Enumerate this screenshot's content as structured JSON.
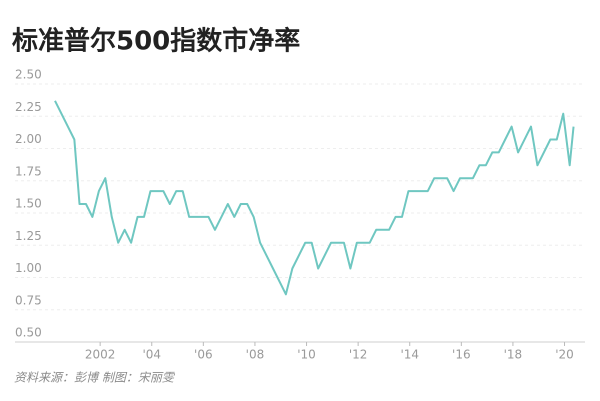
{
  "chart_data": {
    "type": "line",
    "title": "标准普尔500指数市净率",
    "source": "资料来源：彭博   制图：宋丽雯",
    "x": [
      2000.25,
      2001.0,
      2001.2,
      2001.45,
      2001.7,
      2001.95,
      2002.2,
      2002.45,
      2002.7,
      2002.95,
      2003.2,
      2003.45,
      2003.7,
      2003.95,
      2004.45,
      2004.7,
      2004.95,
      2005.2,
      2005.45,
      2006.2,
      2006.45,
      2006.7,
      2006.95,
      2007.2,
      2007.45,
      2007.7,
      2007.95,
      2008.2,
      2008.7,
      2009.2,
      2009.45,
      2009.95,
      2010.2,
      2010.45,
      2010.95,
      2011.45,
      2011.7,
      2011.95,
      2012.45,
      2012.7,
      2013.2,
      2013.45,
      2013.7,
      2013.95,
      2014.7,
      2014.95,
      2015.45,
      2015.7,
      2015.95,
      2016.45,
      2016.7,
      2016.95,
      2017.2,
      2017.45,
      2017.7,
      2017.95,
      2018.2,
      2018.7,
      2018.95,
      2019.45,
      2019.7,
      2019.95,
      2020.2,
      2020.35
    ],
    "series": [
      {
        "name": "市净率",
        "color": "#6fc7c1",
        "values": [
          2.3,
          2.0,
          1.5,
          1.5,
          1.4,
          1.6,
          1.7,
          1.4,
          1.2,
          1.3,
          1.2,
          1.4,
          1.4,
          1.6,
          1.6,
          1.5,
          1.6,
          1.6,
          1.4,
          1.4,
          1.3,
          1.4,
          1.5,
          1.4,
          1.5,
          1.5,
          1.4,
          1.2,
          1.0,
          0.8,
          1.0,
          1.2,
          1.2,
          1.0,
          1.2,
          1.2,
          1.0,
          1.2,
          1.2,
          1.3,
          1.3,
          1.4,
          1.4,
          1.6,
          1.6,
          1.7,
          1.7,
          1.6,
          1.7,
          1.7,
          1.8,
          1.8,
          1.9,
          1.9,
          2.0,
          2.1,
          1.9,
          2.1,
          1.8,
          2.0,
          2.0,
          2.2,
          1.8,
          2.1
        ]
      }
    ],
    "xlim": [
      2000.25,
      2020.6
    ],
    "xticks": [
      {
        "value": 2002,
        "label": "2002"
      },
      {
        "value": 2004,
        "label": "'04"
      },
      {
        "value": 2006,
        "label": "'06"
      },
      {
        "value": 2008,
        "label": "'08"
      },
      {
        "value": 2010,
        "label": "'10"
      },
      {
        "value": 2012,
        "label": "'12"
      },
      {
        "value": 2014,
        "label": "'14"
      },
      {
        "value": 2016,
        "label": "'16"
      },
      {
        "value": 2018,
        "label": "'18"
      },
      {
        "value": 2020,
        "label": "'20"
      }
    ],
    "ylim": [
      0.5,
      2.5
    ],
    "yticks": [
      {
        "value": 0.5,
        "label": "0.50"
      },
      {
        "value": 0.75,
        "label": "0.75"
      },
      {
        "value": 1.0,
        "label": "1.00"
      },
      {
        "value": 1.25,
        "label": "1.25"
      },
      {
        "value": 1.5,
        "label": "1.50"
      },
      {
        "value": 1.75,
        "label": "1.75"
      },
      {
        "value": 2.0,
        "label": "2.00"
      },
      {
        "value": 2.25,
        "label": "2.25"
      },
      {
        "value": 2.5,
        "label": "2.50"
      }
    ],
    "grid": true
  }
}
